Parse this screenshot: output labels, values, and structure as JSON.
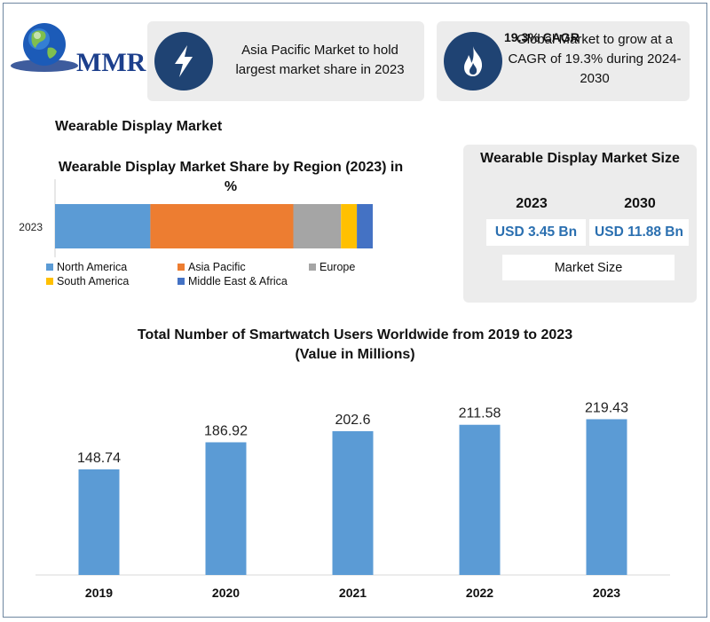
{
  "logo": {
    "text": "MMR",
    "icon": "globe-icon"
  },
  "cards": {
    "region": {
      "icon": "lightning-bolt-icon",
      "text": "Asia Pacific Market to hold largest market share in 2023"
    },
    "cagr": {
      "icon": "flame-icon",
      "title": "19.3% CAGR",
      "text": "Global Market to grow at a CAGR of 19.3% during 2024-2030"
    }
  },
  "section_title": "Wearable Display Market",
  "market_size": {
    "title": "Wearable Display Market Size",
    "year_1": "2023",
    "year_2": "2030",
    "value_1": "USD 3.45 Bn",
    "value_2": "USD 11.88 Bn",
    "label": "Market Size"
  },
  "colors": {
    "north_america": "#5b9bd5",
    "asia_pacific": "#ed7d31",
    "europe": "#a5a5a5",
    "south_america": "#ffc000",
    "mea": "#4472c4",
    "bar": "#5b9bd5",
    "accent_dark": "#1f4373"
  },
  "chart_data": [
    {
      "type": "bar",
      "orientation": "horizontal-stacked",
      "title": "Wearable Display Market Share by Region (2023) in %",
      "categories": [
        "2023"
      ],
      "series": [
        {
          "name": "North America",
          "values": [
            30
          ]
        },
        {
          "name": "Asia Pacific",
          "values": [
            45
          ]
        },
        {
          "name": "Europe",
          "values": [
            15
          ]
        },
        {
          "name": "South America",
          "values": [
            5
          ]
        },
        {
          "name": "Middle East & Africa",
          "values": [
            5
          ]
        }
      ],
      "xlim": [
        0,
        100
      ],
      "legend": "bottom",
      "grid": false
    },
    {
      "type": "bar",
      "title": "Total Number of Smartwatch Users Worldwide from 2019 to 2023",
      "subtitle": "(Value in Millions)",
      "categories": [
        "2019",
        "2020",
        "2021",
        "2022",
        "2023"
      ],
      "values": [
        148.74,
        186.92,
        202.6,
        211.58,
        219.43
      ],
      "value_labels": [
        "148.74",
        "186.92",
        "202.6",
        "211.58",
        "219.43"
      ],
      "ylim": [
        0,
        250
      ],
      "grid": false
    }
  ]
}
